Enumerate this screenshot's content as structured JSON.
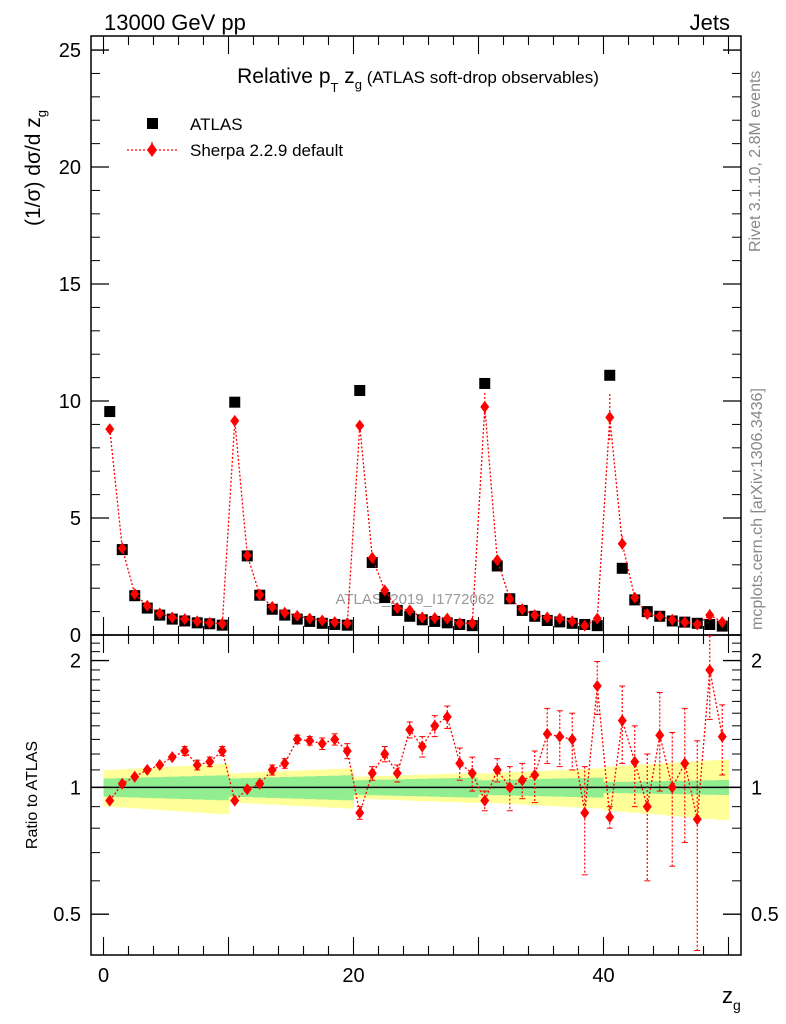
{
  "header": {
    "left": "13000 GeV pp",
    "right": "Jets"
  },
  "side_labels": {
    "rivet": "Rivet 3.1.10,  2.8M events",
    "mcplots": "mcplots.cern.ch [arXiv:1306.3436]"
  },
  "colors": {
    "data": "#000000",
    "mc": "#ff0000",
    "band_inner": "#90ee90",
    "band_outer": "#ffff99"
  },
  "chart_data": [
    {
      "type": "scatter",
      "title_main": "Relative p",
      "title_sub_T": "T",
      "title_z": " z",
      "title_sub_g": "g",
      "title_tail": " (ATLAS soft-drop observables)",
      "ylabel": "(1/σ) dσ/d z",
      "ylabel_sub": "g",
      "watermark": "ATLAS_2019_I1772062",
      "xlim": [
        -1,
        51
      ],
      "ylim": [
        0,
        25.6
      ],
      "yticks": [
        0,
        5,
        10,
        15,
        20,
        25
      ],
      "ytick_labels": [
        "0",
        "5",
        "10",
        "15",
        "20",
        "25"
      ],
      "legend_position": "top-left",
      "x": [
        0.5,
        1.5,
        2.5,
        3.5,
        4.5,
        5.5,
        6.5,
        7.5,
        8.5,
        9.5,
        10.5,
        11.5,
        12.5,
        13.5,
        14.5,
        15.5,
        16.5,
        17.5,
        18.5,
        19.5,
        20.5,
        21.5,
        22.5,
        23.5,
        24.5,
        25.5,
        26.5,
        27.5,
        28.5,
        29.5,
        30.5,
        31.5,
        32.5,
        33.5,
        34.5,
        35.5,
        36.5,
        37.5,
        38.5,
        39.5,
        40.5,
        41.5,
        42.5,
        43.5,
        44.5,
        45.5,
        46.5,
        47.5,
        48.5,
        49.5
      ],
      "series": [
        {
          "name": "ATLAS",
          "marker": "square",
          "values": [
            9.55,
            3.65,
            1.68,
            1.15,
            0.85,
            0.68,
            0.6,
            0.52,
            0.48,
            0.42,
            9.95,
            3.38,
            1.7,
            1.1,
            0.85,
            0.68,
            0.58,
            0.5,
            0.45,
            0.42,
            10.45,
            3.1,
            1.6,
            1.05,
            0.8,
            0.65,
            0.58,
            0.52,
            0.45,
            0.4,
            10.75,
            2.95,
            1.55,
            1.05,
            0.8,
            0.62,
            0.56,
            0.5,
            0.45,
            0.4,
            11.1,
            2.85,
            1.5,
            1.0,
            0.8,
            0.6,
            0.55,
            0.5,
            0.45,
            0.38
          ]
        },
        {
          "name": "Sherpa 2.2.9 default",
          "marker": "diamond",
          "values": [
            8.8,
            3.7,
            1.75,
            1.25,
            0.92,
            0.75,
            0.68,
            0.58,
            0.52,
            0.48,
            9.15,
            3.4,
            1.72,
            1.2,
            0.95,
            0.82,
            0.7,
            0.62,
            0.55,
            0.5,
            8.95,
            3.3,
            1.9,
            1.15,
            1.05,
            0.75,
            0.72,
            0.7,
            0.5,
            0.5,
            9.75,
            3.2,
            1.55,
            1.1,
            0.85,
            0.75,
            0.7,
            0.58,
            0.4,
            0.7,
            9.3,
            3.9,
            1.6,
            0.9,
            0.8,
            0.65,
            0.55,
            0.45,
            0.85,
            0.55
          ],
          "errors": [
            0.05,
            0.05,
            0.04,
            0.04,
            0.03,
            0.03,
            0.03,
            0.03,
            0.03,
            0.03,
            0.05,
            0.05,
            0.04,
            0.04,
            0.03,
            0.03,
            0.03,
            0.03,
            0.03,
            0.03,
            0.06,
            0.05,
            0.04,
            0.04,
            0.04,
            0.04,
            0.04,
            0.04,
            0.04,
            0.04,
            0.6,
            0.15,
            0.05,
            0.05,
            0.05,
            0.05,
            0.05,
            0.05,
            0.05,
            0.05,
            1.0,
            0.35,
            0.15,
            0.15,
            0.1,
            0.1,
            0.1,
            0.1,
            0.25,
            0.15
          ]
        }
      ]
    },
    {
      "type": "scatter",
      "ylabel": "Ratio to ATLAS",
      "xlabel": "z",
      "xlabel_sub": "g",
      "xlim": [
        -1,
        51
      ],
      "ylim": [
        0.4,
        2.3
      ],
      "yscale": "log",
      "yticks": [
        0.5,
        1,
        2
      ],
      "ytick_labels": [
        "0.5",
        "1",
        "2"
      ],
      "xticks": [
        0,
        20,
        40
      ],
      "xtick_labels": [
        "0",
        "20",
        "40"
      ],
      "bands": {
        "bins_per_group": 10,
        "inner": [
          0.05,
          0.05,
          0.04,
          0.04,
          0.03
        ],
        "outer": [
          0.1,
          0.08,
          0.06,
          0.08,
          0.12
        ]
      },
      "ratio": [
        0.93,
        1.02,
        1.06,
        1.1,
        1.13,
        1.18,
        1.22,
        1.13,
        1.15,
        1.22,
        0.93,
        0.99,
        1.02,
        1.1,
        1.14,
        1.3,
        1.29,
        1.27,
        1.3,
        1.22,
        0.87,
        1.08,
        1.2,
        1.08,
        1.37,
        1.25,
        1.4,
        1.47,
        1.14,
        1.08,
        0.93,
        1.1,
        1.0,
        1.04,
        1.07,
        1.34,
        1.32,
        1.3,
        0.87,
        1.74,
        0.85,
        1.44,
        1.15,
        0.9,
        1.33,
        1.0,
        1.14,
        0.84,
        1.9,
        1.32
      ],
      "ratio_err": [
        0.02,
        0.02,
        0.02,
        0.02,
        0.02,
        0.02,
        0.03,
        0.03,
        0.03,
        0.03,
        0.02,
        0.02,
        0.02,
        0.03,
        0.03,
        0.03,
        0.03,
        0.04,
        0.04,
        0.05,
        0.03,
        0.04,
        0.05,
        0.05,
        0.06,
        0.07,
        0.08,
        0.09,
        0.1,
        0.1,
        0.05,
        0.07,
        0.12,
        0.1,
        0.15,
        0.2,
        0.2,
        0.2,
        0.25,
        0.25,
        0.05,
        0.3,
        0.25,
        0.3,
        0.35,
        0.35,
        0.4,
        0.45,
        0.45,
        0.25
      ]
    }
  ]
}
